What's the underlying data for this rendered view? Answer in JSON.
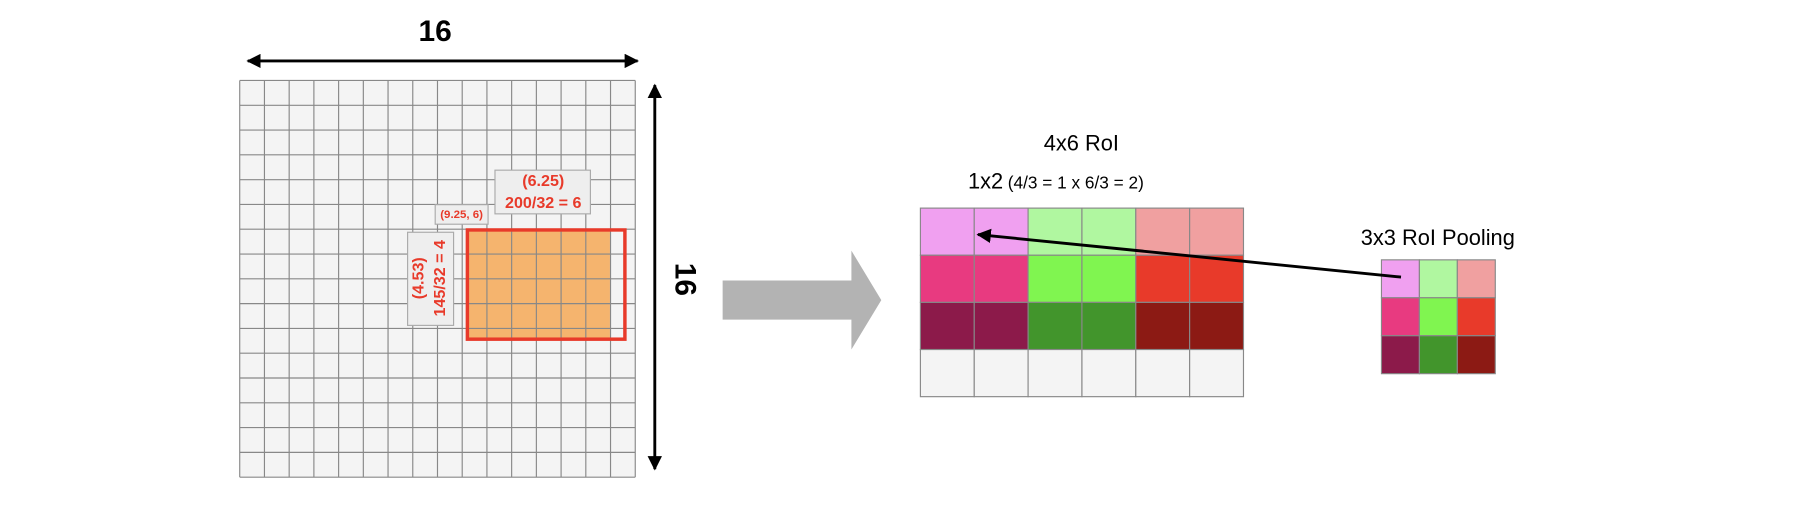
{
  "feature_map": {
    "width_label": "16",
    "height_label": "16"
  },
  "annotations": {
    "top_line1": "(6.25)",
    "top_line2": "200/32 = 6",
    "corner": "(9.25, 6)",
    "side_line1": "(4.53)",
    "side_line2": "145/32 = 4"
  },
  "roi": {
    "title": "4x6 RoI",
    "subtitle_main": "1x2",
    "subtitle_detail": "(4/3 = 1 x 6/3 = 2)"
  },
  "pooling": {
    "title": "3x3 RoI Pooling"
  }
}
